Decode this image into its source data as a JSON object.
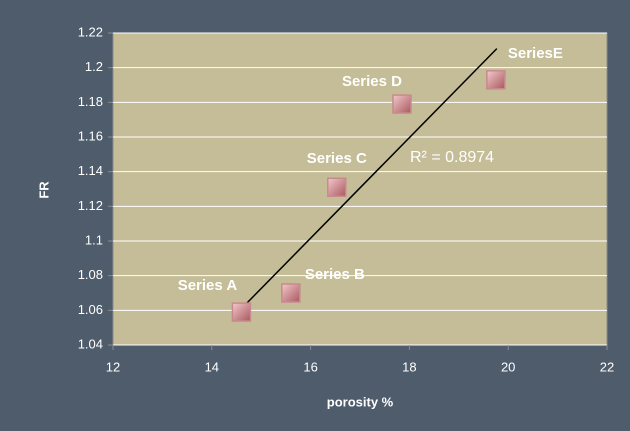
{
  "chart_data": {
    "type": "scatter",
    "x_label": "porosity %",
    "y_label": "FR",
    "xlim": [
      12,
      22
    ],
    "xticks": [
      12,
      14,
      16,
      18,
      20,
      22
    ],
    "ylim": [
      1.04,
      1.22
    ],
    "yticks": [
      1.04,
      1.06,
      1.08,
      1.1,
      1.12,
      1.14,
      1.16,
      1.18,
      1.2,
      1.22
    ],
    "grid": true,
    "series": [
      {
        "name": "Series A",
        "color": "#c98a8e",
        "x": [
          14.6
        ],
        "values": [
          1.059
        ]
      },
      {
        "name": "Series B",
        "color": "#c98a8e",
        "x": [
          15.6
        ],
        "values": [
          1.07
        ]
      },
      {
        "name": "Series C",
        "color": "#c98a8e",
        "x": [
          16.53
        ],
        "values": [
          1.131
        ]
      },
      {
        "name": "Series D",
        "color": "#c98a8e",
        "x": [
          17.85
        ],
        "values": [
          1.179
        ]
      },
      {
        "name": "SeriesE",
        "color": "#c98a8e",
        "x": [
          19.75
        ],
        "values": [
          1.193
        ]
      }
    ],
    "trendline": {
      "x": [
        14.6,
        19.77
      ],
      "values": [
        1.061,
        1.211
      ],
      "color": "#000000"
    },
    "annotation": "R² = 0.8974"
  }
}
